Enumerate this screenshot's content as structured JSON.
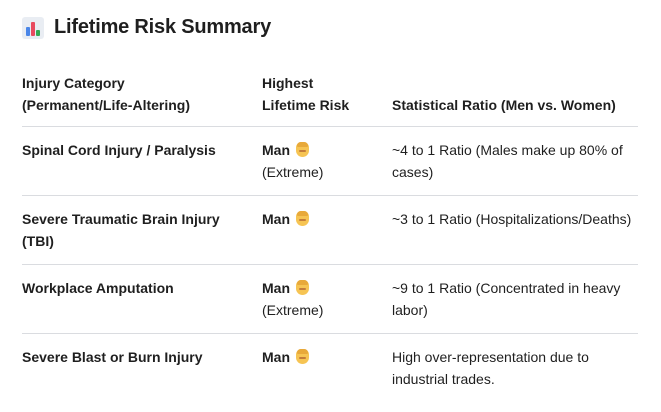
{
  "title": "Lifetime Risk Summary",
  "title_icon": "bar-chart-icon",
  "table": {
    "headers": [
      {
        "line1": "Injury Category",
        "line2": "(Permanent/Life-Altering)"
      },
      {
        "line1": "Highest",
        "line2": "Lifetime Risk"
      },
      {
        "line1": "",
        "line2": "Statistical Ratio (Men vs. Women)"
      }
    ],
    "rows": [
      {
        "category": "Spinal Cord Injury / Paralysis",
        "risk": "Man",
        "risk_note": "(Extreme)",
        "ratio": "~4 to 1 Ratio (Males make up 80% of cases)"
      },
      {
        "category": "Severe Traumatic Brain Injury (TBI)",
        "risk": "Man",
        "risk_note": "",
        "ratio": "~3 to 1 Ratio (Hospitalizations/Deaths)"
      },
      {
        "category": "Workplace Amputation",
        "risk": "Man",
        "risk_note": "(Extreme)",
        "ratio": "~9 to 1 Ratio (Concentrated in heavy labor)"
      },
      {
        "category": "Severe Blast or Burn Injury",
        "risk": "Man",
        "risk_note": "",
        "ratio": "High over-representation due to industrial trades."
      }
    ]
  },
  "icons": {
    "risk": "man-emoji-icon"
  }
}
